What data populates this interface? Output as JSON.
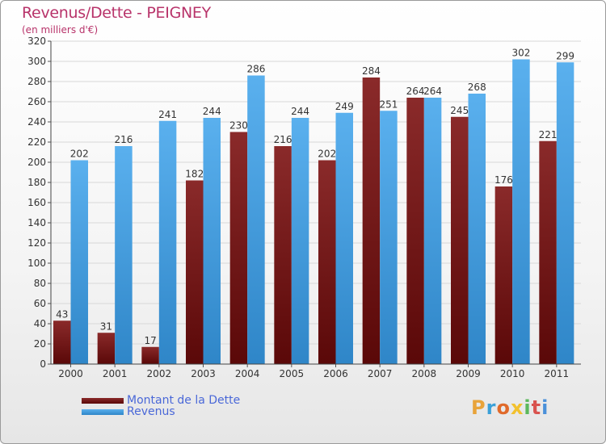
{
  "chart_data": {
    "type": "bar",
    "title": "Revenus/Dette - PEIGNEY",
    "subtitle": "(en milliers d'€)",
    "categories": [
      "2000",
      "2001",
      "2002",
      "2003",
      "2004",
      "2005",
      "2006",
      "2007",
      "2008",
      "2009",
      "2010",
      "2011"
    ],
    "series": [
      {
        "name": "Montant de la Dette",
        "color": "#7a1f1f",
        "values": [
          43,
          31,
          17,
          182,
          230,
          216,
          202,
          284,
          264,
          245,
          176,
          221
        ]
      },
      {
        "name": "Revenus",
        "color": "#4aa3e6",
        "values": [
          202,
          216,
          241,
          244,
          286,
          244,
          249,
          251,
          264,
          268,
          302,
          299
        ]
      }
    ],
    "ylim": [
      0,
      320
    ],
    "yticks": [
      0,
      20,
      40,
      60,
      80,
      100,
      120,
      140,
      160,
      180,
      200,
      220,
      240,
      260,
      280,
      300,
      320
    ],
    "grid": true,
    "legend": "bottom-left"
  },
  "branding": {
    "logo_text": "Proxiti",
    "logo_colors": [
      "#e8a33a",
      "#3aa0d8",
      "#e06a2a",
      "#f2c12e",
      "#5cb85c",
      "#d9534f",
      "#4a90d9"
    ]
  }
}
